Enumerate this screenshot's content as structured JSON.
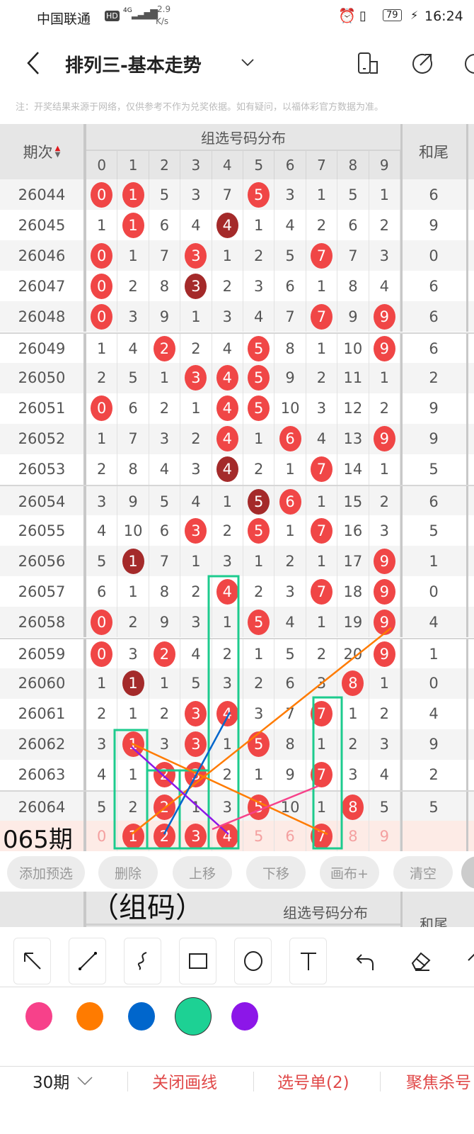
{
  "status_bar": {
    "carrier": "中国联通",
    "hd": "HD",
    "network": "4G",
    "speed_value": "2.9",
    "speed_unit": "K/s",
    "battery": "79",
    "time": "16:24"
  },
  "header": {
    "title": "排列三-基本走势"
  },
  "note": "注：开奖结果来源于网络，仅供参考不作为兑奖依据。如有疑问，以福体彩官方数据为准。",
  "table": {
    "period_header": "期次",
    "group_header": "组选号码分布",
    "sum_tail_header": "和尾",
    "digits": [
      "0",
      "1",
      "2",
      "3",
      "4",
      "5",
      "6",
      "7",
      "8",
      "9"
    ],
    "rows": [
      {
        "period": "26044",
        "values": [
          "0",
          "1",
          "5",
          "3",
          "7",
          "5",
          "3",
          "1",
          "5",
          "1"
        ],
        "marks": "rr...r....",
        "tail": "6"
      },
      {
        "period": "26045",
        "values": [
          "1",
          "1",
          "6",
          "4",
          "4",
          "1",
          "4",
          "2",
          "6",
          "2"
        ],
        "marks": ".r..d.....",
        "tail": "9"
      },
      {
        "period": "26046",
        "values": [
          "0",
          "1",
          "7",
          "3",
          "1",
          "2",
          "5",
          "7",
          "7",
          "3"
        ],
        "marks": "r..r...r..",
        "tail": "0"
      },
      {
        "period": "26047",
        "values": [
          "0",
          "2",
          "8",
          "3",
          "2",
          "3",
          "6",
          "1",
          "8",
          "4"
        ],
        "marks": "r..d......",
        "tail": "6"
      },
      {
        "period": "26048",
        "values": [
          "0",
          "3",
          "9",
          "1",
          "3",
          "4",
          "7",
          "7",
          "9",
          "9"
        ],
        "marks": "r......r.r",
        "tail": "6"
      },
      {
        "period": "26049",
        "values": [
          "1",
          "4",
          "2",
          "2",
          "4",
          "5",
          "8",
          "1",
          "10",
          "9"
        ],
        "marks": "..r..r...r",
        "tail": "6"
      },
      {
        "period": "26050",
        "values": [
          "2",
          "5",
          "1",
          "3",
          "4",
          "5",
          "9",
          "2",
          "11",
          "1"
        ],
        "marks": "...rrr....",
        "tail": "2"
      },
      {
        "period": "26051",
        "values": [
          "0",
          "6",
          "2",
          "1",
          "4",
          "5",
          "10",
          "3",
          "12",
          "2"
        ],
        "marks": "r...rr....",
        "tail": "9"
      },
      {
        "period": "26052",
        "values": [
          "1",
          "7",
          "3",
          "2",
          "4",
          "1",
          "6",
          "4",
          "13",
          "9"
        ],
        "marks": "....r.r..r",
        "tail": "9"
      },
      {
        "period": "26053",
        "values": [
          "2",
          "8",
          "4",
          "3",
          "4",
          "2",
          "1",
          "7",
          "14",
          "1"
        ],
        "marks": "....d..r..",
        "tail": "5"
      },
      {
        "period": "26054",
        "values": [
          "3",
          "9",
          "5",
          "4",
          "1",
          "5",
          "6",
          "1",
          "15",
          "2"
        ],
        "marks": ".....dr...",
        "tail": "6"
      },
      {
        "period": "26055",
        "values": [
          "4",
          "10",
          "6",
          "3",
          "2",
          "5",
          "1",
          "7",
          "16",
          "3"
        ],
        "marks": "...r.r.r..",
        "tail": "5"
      },
      {
        "period": "26056",
        "values": [
          "5",
          "1",
          "7",
          "1",
          "3",
          "1",
          "2",
          "1",
          "17",
          "9"
        ],
        "marks": ".d.......r",
        "tail": "1"
      },
      {
        "period": "26057",
        "values": [
          "6",
          "1",
          "8",
          "2",
          "4",
          "2",
          "3",
          "7",
          "18",
          "9"
        ],
        "marks": "....r..r.r",
        "tail": "0"
      },
      {
        "period": "26058",
        "values": [
          "0",
          "2",
          "9",
          "3",
          "1",
          "5",
          "4",
          "1",
          "19",
          "9"
        ],
        "marks": "r....r...r",
        "tail": "4"
      },
      {
        "period": "26059",
        "values": [
          "0",
          "3",
          "2",
          "4",
          "2",
          "1",
          "5",
          "2",
          "20",
          "9"
        ],
        "marks": "r.r......r",
        "tail": "1"
      },
      {
        "period": "26060",
        "values": [
          "1",
          "1",
          "1",
          "5",
          "3",
          "2",
          "6",
          "3",
          "8",
          "1"
        ],
        "marks": ".d......r.",
        "tail": "0"
      },
      {
        "period": "26061",
        "values": [
          "2",
          "1",
          "2",
          "3",
          "4",
          "3",
          "7",
          "7",
          "1",
          "2"
        ],
        "marks": "...rr..r..",
        "tail": "4"
      },
      {
        "period": "26062",
        "values": [
          "3",
          "1",
          "3",
          "3",
          "1",
          "5",
          "8",
          "1",
          "2",
          "3"
        ],
        "marks": ".r.r.r....",
        "tail": "9"
      },
      {
        "period": "26063",
        "values": [
          "4",
          "1",
          "2",
          "3",
          "2",
          "1",
          "9",
          "7",
          "3",
          "4"
        ],
        "marks": "..rr...r..",
        "tail": "2"
      },
      {
        "period": "26064",
        "values": [
          "5",
          "2",
          "2",
          "1",
          "3",
          "5",
          "10",
          "1",
          "8",
          "5"
        ],
        "marks": "..r..r..r.",
        "tail": "5"
      }
    ],
    "predict_row": {
      "period": "065期",
      "values": [
        "0",
        "1",
        "2",
        "3",
        "4",
        "5",
        "6",
        "7",
        "8",
        "9"
      ],
      "marks": ".rrrr..r..",
      "tail": ""
    }
  },
  "overlay_label": "（组码）",
  "actions": [
    "添加预选",
    "删除",
    "上移",
    "下移",
    "画布+",
    "清空"
  ],
  "tools": [
    "arrow-tool",
    "line-tool",
    "freehand-tool",
    "rectangle-tool",
    "ellipse-tool",
    "text-tool",
    "undo",
    "eraser"
  ],
  "colors": {
    "pink": "#f7418a",
    "orange": "#ff7b00",
    "blue": "#0066cc",
    "green": "#1dd194",
    "purple": "#8c16e8",
    "selected": "green",
    "ball": "#f04646",
    "ball_repeat": "#a42a2a",
    "accent": "#e04848"
  },
  "bottom_bar": {
    "period_select": "30期",
    "close_drawing": "关闭画线",
    "pick_list": "选号单(2)",
    "focus_kill": "聚焦杀号"
  }
}
